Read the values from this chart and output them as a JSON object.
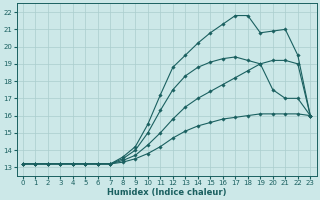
{
  "xlabel": "Humidex (Indice chaleur)",
  "bg_color": "#cce8e8",
  "grid_color": "#aacece",
  "line_color": "#1a6060",
  "xlim": [
    -0.5,
    23.5
  ],
  "ylim": [
    12.5,
    22.5
  ],
  "xticks": [
    0,
    1,
    2,
    3,
    4,
    5,
    6,
    7,
    8,
    9,
    10,
    11,
    12,
    13,
    14,
    15,
    16,
    17,
    18,
    19,
    20,
    21,
    22,
    23
  ],
  "yticks": [
    13,
    14,
    15,
    16,
    17,
    18,
    19,
    20,
    21,
    22
  ],
  "series": [
    [
      13.2,
      13.2,
      13.2,
      13.2,
      13.2,
      13.2,
      13.2,
      13.2,
      13.3,
      13.5,
      13.8,
      14.2,
      14.7,
      15.1,
      15.4,
      15.6,
      15.8,
      15.9,
      16.0,
      16.1,
      16.1,
      16.1,
      16.1,
      16.0
    ],
    [
      13.2,
      13.2,
      13.2,
      13.2,
      13.2,
      13.2,
      13.2,
      13.2,
      13.4,
      13.7,
      14.3,
      15.0,
      15.8,
      16.5,
      17.0,
      17.4,
      17.8,
      18.2,
      18.6,
      19.0,
      19.2,
      19.2,
      19.0,
      16.0
    ],
    [
      13.2,
      13.2,
      13.2,
      13.2,
      13.2,
      13.2,
      13.2,
      13.2,
      13.5,
      14.0,
      15.0,
      16.3,
      17.5,
      18.3,
      18.8,
      19.1,
      19.3,
      19.4,
      19.2,
      19.0,
      17.5,
      17.0,
      17.0,
      16.0
    ],
    [
      13.2,
      13.2,
      13.2,
      13.2,
      13.2,
      13.2,
      13.2,
      13.2,
      13.6,
      14.2,
      15.5,
      17.2,
      18.8,
      19.5,
      20.2,
      20.8,
      21.3,
      21.8,
      21.8,
      20.8,
      20.9,
      21.0,
      19.5,
      16.0
    ]
  ]
}
